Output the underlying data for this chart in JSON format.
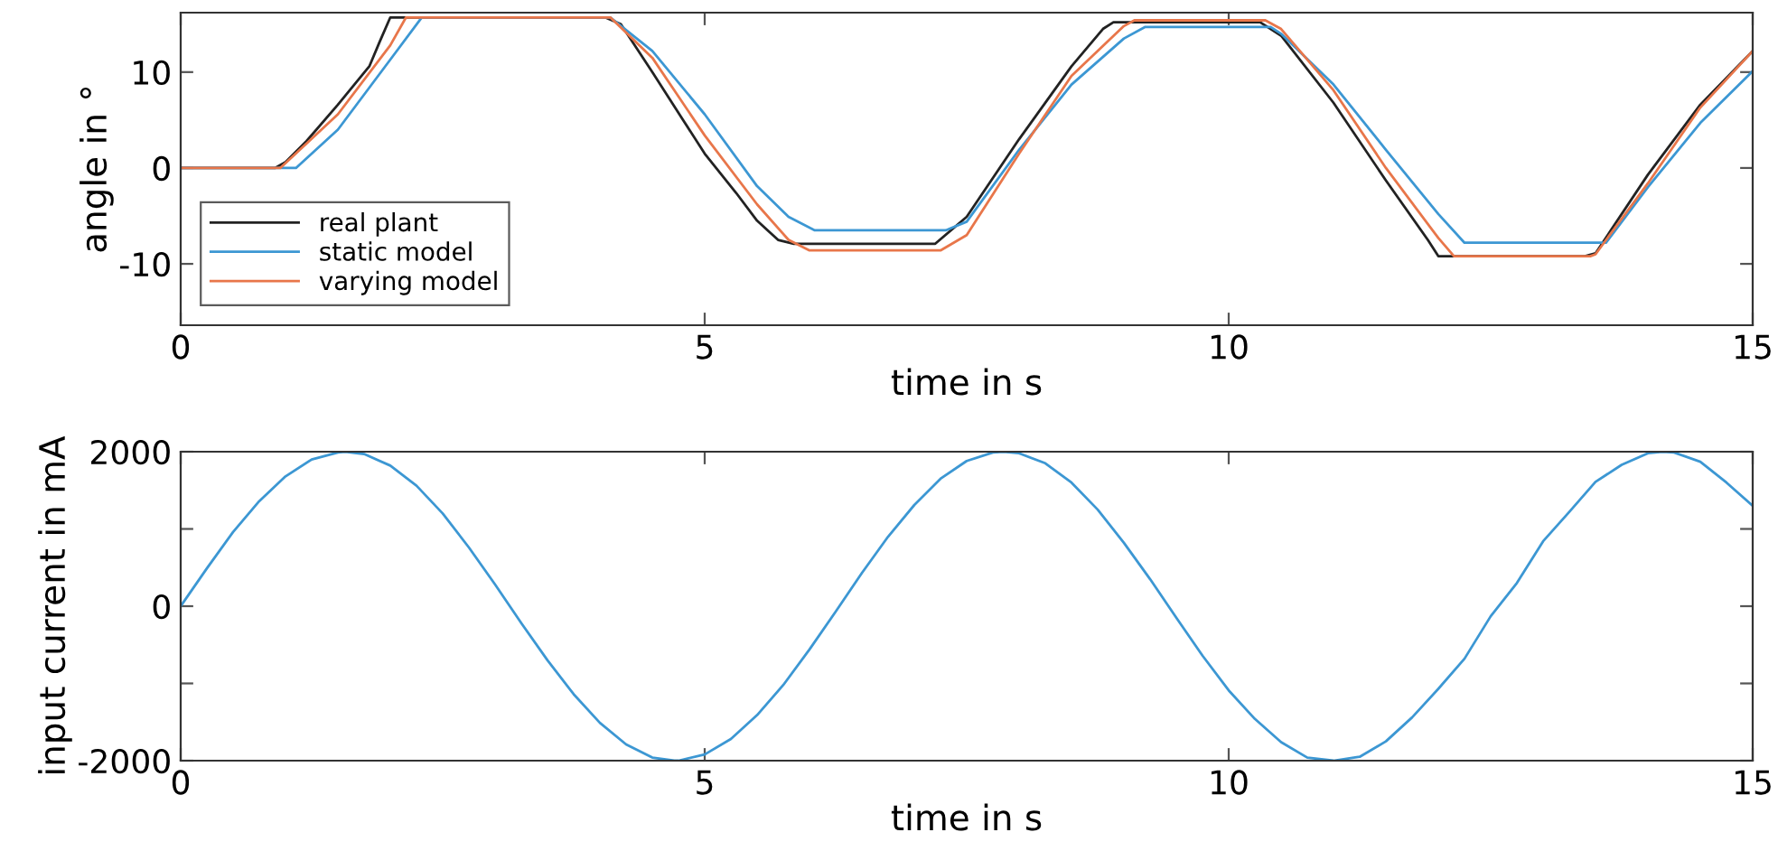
{
  "chart_data": [
    {
      "type": "line",
      "xlabel": "time in s",
      "ylabel": "angle in °",
      "xlim": [
        0,
        15
      ],
      "xticks": [
        0,
        5,
        10,
        15
      ],
      "ylim": [
        -16.4,
        16.2
      ],
      "yticks": [
        -10,
        0,
        10
      ],
      "legend": "bottom left",
      "series": [
        {
          "name": "real plant",
          "color": "#222222",
          "x": [
            0,
            0.9,
            1.0,
            1.2,
            1.5,
            1.8,
            1.9,
            2.0,
            4.05,
            4.2,
            4.5,
            4.8,
            5.0,
            5.3,
            5.5,
            5.7,
            5.85,
            7.2,
            7.5,
            8.0,
            8.5,
            8.8,
            8.9,
            10.3,
            10.5,
            11.0,
            11.5,
            11.9,
            12.0,
            13.4,
            13.5,
            14.0,
            14.5,
            15
          ],
          "values": [
            0,
            0,
            0.6,
            2.8,
            6.6,
            10.6,
            13.2,
            15.7,
            15.7,
            15,
            10,
            4.9,
            1.5,
            -2.6,
            -5.5,
            -7.5,
            -7.9,
            -7.9,
            -5.1,
            3,
            10.6,
            14.5,
            15.2,
            15.2,
            13.8,
            6.8,
            -1.3,
            -7.5,
            -9.2,
            -9.2,
            -8.9,
            -0.7,
            6.6,
            12.2
          ]
        },
        {
          "name": "static model",
          "color": "#3c97d3",
          "x": [
            0,
            1.1,
            1.5,
            2.0,
            2.3,
            4.1,
            4.5,
            5.0,
            5.5,
            5.8,
            6.05,
            7.3,
            7.5,
            8.0,
            8.5,
            9.0,
            9.2,
            10.4,
            10.5,
            11.0,
            11.5,
            12.0,
            12.25,
            13.6,
            14.0,
            14.5,
            15
          ],
          "values": [
            0,
            0,
            4,
            11.3,
            15.7,
            15.7,
            12.2,
            5.6,
            -1.9,
            -5.1,
            -6.5,
            -6.5,
            -5.6,
            1.9,
            8.7,
            13.5,
            14.7,
            14.7,
            14,
            8.7,
            1.9,
            -4.8,
            -7.8,
            -7.8,
            -2,
            4.7,
            10.1
          ]
        },
        {
          "name": "varying model",
          "color": "#e8764a",
          "x": [
            0,
            0.95,
            1.5,
            2.0,
            2.15,
            4.1,
            4.5,
            5.0,
            5.5,
            5.8,
            6.0,
            7.25,
            7.5,
            8.0,
            8.5,
            9.0,
            9.1,
            10.35,
            10.5,
            11.0,
            11.5,
            12.0,
            12.15,
            13.45,
            13.5,
            14.0,
            14.5,
            15
          ],
          "values": [
            0,
            0,
            5.6,
            12.8,
            15.7,
            15.7,
            11.5,
            3.4,
            -3.8,
            -7.5,
            -8.6,
            -8.6,
            -7,
            1.5,
            9.6,
            14.8,
            15.4,
            15.4,
            14.5,
            8.1,
            0,
            -7.3,
            -9.2,
            -9.2,
            -9,
            -1.6,
            6.3,
            12.2
          ]
        }
      ]
    },
    {
      "type": "line",
      "xlabel": "time in s",
      "ylabel": "input current in mA",
      "xlim": [
        0,
        15
      ],
      "xticks": [
        0,
        5,
        10,
        15
      ],
      "ylim": [
        -2000,
        2000
      ],
      "yticks": [
        -2000,
        {
          "value": -1000,
          "label": null
        },
        0,
        {
          "value": 1000,
          "label": null
        },
        2000
      ],
      "series": [
        {
          "color": "#3c97d3",
          "x": [
            0,
            0.25,
            0.5,
            0.75,
            1,
            1.25,
            1.5,
            1.57,
            1.75,
            2,
            2.25,
            2.5,
            2.75,
            3,
            3.25,
            3.5,
            3.75,
            4,
            4.25,
            4.5,
            4.71,
            4.75,
            5,
            5.25,
            5.5,
            5.75,
            6,
            6.25,
            6.5,
            6.75,
            7,
            7.25,
            7.5,
            7.75,
            7.85,
            8,
            8.25,
            8.5,
            8.75,
            9,
            9.25,
            9.5,
            9.75,
            10,
            10.25,
            10.5,
            10.75,
            11,
            11.25,
            11.5,
            11.75,
            12,
            12.25,
            12.5,
            12.75,
            13,
            13.25,
            13.5,
            13.75,
            14,
            14.14,
            14.25,
            14.5,
            14.75,
            15
          ],
          "values": [
            0,
            490,
            960,
            1360,
            1680,
            1900,
            1990,
            2000,
            1970,
            1820,
            1560,
            1200,
            760,
            280,
            -220,
            -700,
            -1140,
            -1510,
            -1790,
            -1960,
            -2000,
            -2000,
            -1920,
            -1720,
            -1410,
            -1020,
            -560,
            -70,
            430,
            900,
            1310,
            1650,
            1880,
            1990,
            2000,
            1980,
            1850,
            1600,
            1250,
            820,
            350,
            -150,
            -640,
            -1090,
            -1460,
            -1760,
            -1960,
            -2000,
            -1950,
            -1750,
            -1440,
            -1070,
            -680,
            -130,
            300,
            840,
            1220,
            1610,
            1830,
            1980,
            2000,
            1990,
            1870,
            1600,
            1300
          ]
        }
      ]
    }
  ]
}
